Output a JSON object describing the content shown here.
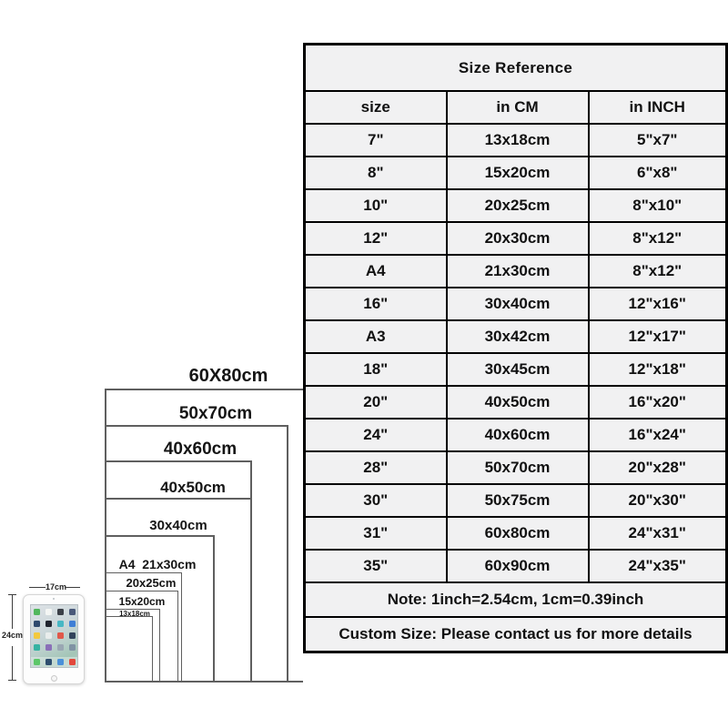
{
  "chart_data": {
    "type": "table",
    "title": "Size Reference",
    "columns": [
      "size",
      "in CM",
      "in INCH"
    ],
    "rows": [
      [
        "7\"",
        "13x18cm",
        "5\"x7\""
      ],
      [
        "8\"",
        "15x20cm",
        "6\"x8\""
      ],
      [
        "10\"",
        "20x25cm",
        "8\"x10\""
      ],
      [
        "12\"",
        "20x30cm",
        "8\"x12\""
      ],
      [
        "A4",
        "21x30cm",
        "8\"x12\""
      ],
      [
        "16\"",
        "30x40cm",
        "12\"x16\""
      ],
      [
        "A3",
        "30x42cm",
        "12\"x17\""
      ],
      [
        "18\"",
        "30x45cm",
        "12\"x18\""
      ],
      [
        "20\"",
        "40x50cm",
        "16\"x20\""
      ],
      [
        "24\"",
        "40x60cm",
        "16\"x24\""
      ],
      [
        "28\"",
        "50x70cm",
        "20\"x28\""
      ],
      [
        "30\"",
        "50x75cm",
        "20\"x30\""
      ],
      [
        "31\"",
        "60x80cm",
        "24\"x31\""
      ],
      [
        "35\"",
        "60x90cm",
        "24\"x35\""
      ]
    ],
    "notes": [
      "Note: 1inch=2.54cm, 1cm=0.39inch",
      "Custom Size: Please contact us for more details"
    ],
    "layout_hints": {
      "cell_background": "#f1f1f2",
      "border_color": "#000000",
      "legend_position": "none",
      "grid": "on"
    }
  },
  "diagram": {
    "rects": [
      {
        "label": "60X80cm"
      },
      {
        "label": "50x70cm"
      },
      {
        "label": "40x60cm"
      },
      {
        "label": "40x50cm"
      },
      {
        "label": "30x40cm"
      },
      {
        "label": "A4  21x30cm"
      },
      {
        "label": "20x25cm"
      },
      {
        "label": "15x20cm"
      },
      {
        "label": "13x18cm"
      }
    ]
  },
  "tablet": {
    "width_label": "17cm",
    "height_label": "24cm",
    "icon_colors": [
      "#51b75c",
      "#f4f6f4",
      "#3a3f47",
      "#49597a",
      "#2e4a6e",
      "#20242e",
      "#47b7c4",
      "#3f7fd6",
      "#f3c93f",
      "#e9edec",
      "#e0584a",
      "#32445c",
      "#35b3a2",
      "#8a6fb8",
      "#9aa7b3",
      "#8093a4"
    ],
    "dock_colors": [
      "#5cc768",
      "#2d4d6e",
      "#4a90d9",
      "#e2483c"
    ]
  }
}
